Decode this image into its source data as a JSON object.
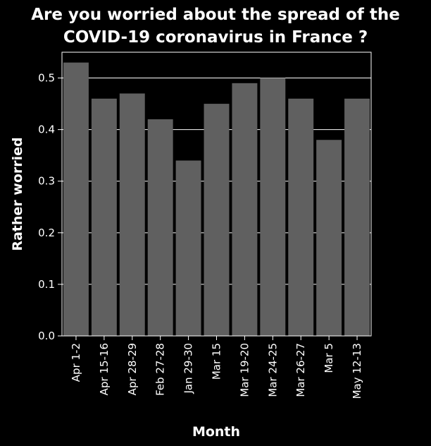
{
  "chart_data": {
    "type": "bar",
    "title_lines": [
      "Are you worried about the spread of the",
      "COVID-19 coronavirus in France ?"
    ],
    "xlabel": "Month",
    "ylabel": "Rather worried",
    "categories": [
      "Apr 1-2",
      "Apr 15-16",
      "Apr 28-29",
      "Feb 27-28",
      "Jan 29-30",
      "Mar 15",
      "Mar 19-20",
      "Mar 24-25",
      "Mar 26-27",
      "Mar 5",
      "May 12-13"
    ],
    "values": [
      0.53,
      0.46,
      0.47,
      0.42,
      0.34,
      0.45,
      0.49,
      0.5,
      0.46,
      0.38,
      0.46
    ],
    "ylim": [
      0,
      0.55
    ],
    "yticks": [
      "0.0",
      "0.1",
      "0.2",
      "0.3",
      "0.4",
      "0.5"
    ],
    "grid": true,
    "colors": {
      "background": "#000000",
      "plot_background": "#000000",
      "bar": "#606060",
      "grid": "#ffffff",
      "text": "#ffffff"
    }
  }
}
